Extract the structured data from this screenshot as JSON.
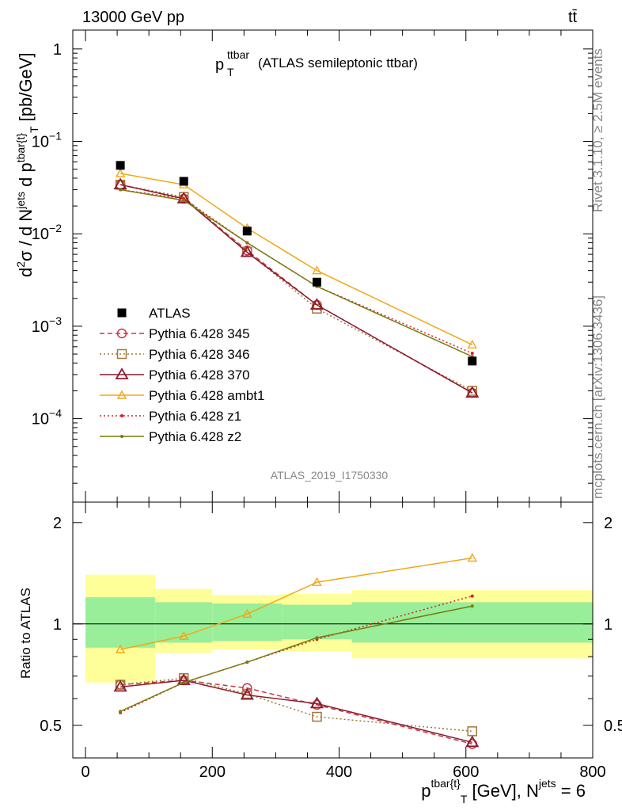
{
  "header": {
    "left": "13000 GeV pp",
    "right": "tt̄"
  },
  "plot_title": {
    "var_main": "p",
    "var_sup": "ttbar",
    "var_sub": "T",
    "rest": "(ATLAS semileptonic ttbar)"
  },
  "side_texts": {
    "rivet": "Rivet 3.1.10, ≥ 2.5M events",
    "mcplots": "mcplots.cern.ch [arXiv:1306.3436]"
  },
  "analysis_id": "ATLAS_2019_I1750330",
  "main_ylabel": {
    "part1": "d",
    "sup1": "2",
    "part2": "σ / d N",
    "sup2": "jets",
    "part3": " d p",
    "sup3": "tbar{t}",
    "sub3": "T",
    "part4": " [pb/GeV]"
  },
  "ratio_ylabel": "Ratio to ATLAS",
  "xlabel": {
    "main": "p",
    "sup": "tbar{t}",
    "sub": "T",
    "rest": " [GeV], N",
    "sup2": "jets",
    "tail": " = 6"
  },
  "main_yticks": [
    {
      "value": 1,
      "label": "1"
    },
    {
      "value": 0.1,
      "label": "10",
      "exp": "−1"
    },
    {
      "value": 0.01,
      "label": "10",
      "exp": "−2"
    },
    {
      "value": 0.001,
      "label": "10",
      "exp": "−3"
    },
    {
      "value": 0.0001,
      "label": "10",
      "exp": "−4"
    }
  ],
  "ratio_yticks": [
    {
      "value": 0.5,
      "label": "0.5"
    },
    {
      "value": 1,
      "label": "1"
    },
    {
      "value": 2,
      "label": "2"
    }
  ],
  "xticks": [
    {
      "value": 0,
      "label": "0"
    },
    {
      "value": 200,
      "label": "200"
    },
    {
      "value": 400,
      "label": "400"
    },
    {
      "value": 600,
      "label": "600"
    },
    {
      "value": 800,
      "label": "800"
    }
  ],
  "chart_data": {
    "type": "scatter",
    "x_range": [
      -20,
      800
    ],
    "main_ylim": [
      1.25e-05,
      1.6
    ],
    "main_log": true,
    "ratio_ylim": [
      0.4,
      2.3
    ],
    "ratio_log": true,
    "bins": [
      [
        0,
        110
      ],
      [
        110,
        200
      ],
      [
        200,
        310
      ],
      [
        310,
        420
      ],
      [
        420,
        800
      ]
    ],
    "x": [
      55,
      155,
      255,
      365,
      610
    ],
    "data": {
      "name": "ATLAS",
      "values": [
        0.055,
        0.037,
        0.0107,
        0.003,
        0.00042
      ],
      "band_inner": [
        [
          0.85,
          1.2
        ],
        [
          0.88,
          1.16
        ],
        [
          0.89,
          1.15
        ],
        [
          0.9,
          1.14
        ],
        [
          0.88,
          1.16
        ]
      ],
      "band_outer": [
        [
          0.67,
          1.4
        ],
        [
          0.82,
          1.27
        ],
        [
          0.84,
          1.22
        ],
        [
          0.83,
          1.23
        ],
        [
          0.79,
          1.26
        ]
      ]
    },
    "series": [
      {
        "name": "Pythia 6.428 345",
        "color": "#cc3344",
        "dash": "6,4",
        "marker": "circle",
        "values": [
          0.034,
          0.024,
          0.0066,
          0.0017,
          0.00019
        ],
        "ratio": [
          0.66,
          0.68,
          0.645,
          0.575,
          0.44
        ]
      },
      {
        "name": "Pythia 6.428 346",
        "color": "#a07838",
        "dash": "2,3",
        "marker": "square",
        "values": [
          0.034,
          0.025,
          0.0064,
          0.00155,
          0.0002
        ],
        "ratio": [
          0.66,
          0.69,
          0.62,
          0.53,
          0.48
        ]
      },
      {
        "name": "Pythia 6.428 370",
        "color": "#8b1a2e",
        "dash": "",
        "marker": "triangle",
        "values": [
          0.034,
          0.024,
          0.0063,
          0.0017,
          0.00019
        ],
        "ratio": [
          0.65,
          0.68,
          0.615,
          0.58,
          0.445
        ]
      },
      {
        "name": "Pythia 6.428 ambt1",
        "color": "#f0a818",
        "dash": "",
        "marker": "triangle-small",
        "values": [
          0.045,
          0.034,
          0.0115,
          0.004,
          0.00063
        ],
        "ratio": [
          0.84,
          0.92,
          1.07,
          1.33,
          1.57
        ]
      },
      {
        "name": "Pythia 6.428 z1",
        "color": "#dd2020",
        "dash": "2,3",
        "marker": "dot",
        "values": [
          0.03,
          0.024,
          0.008,
          0.0027,
          0.00051
        ],
        "ratio": [
          0.545,
          0.67,
          0.77,
          0.9,
          1.21
        ]
      },
      {
        "name": "Pythia 6.428 z2",
        "color": "#7a7a10",
        "dash": "",
        "marker": "dot",
        "values": [
          0.03,
          0.023,
          0.008,
          0.0027,
          0.00047
        ],
        "ratio": [
          0.55,
          0.67,
          0.77,
          0.91,
          1.13
        ]
      }
    ]
  }
}
